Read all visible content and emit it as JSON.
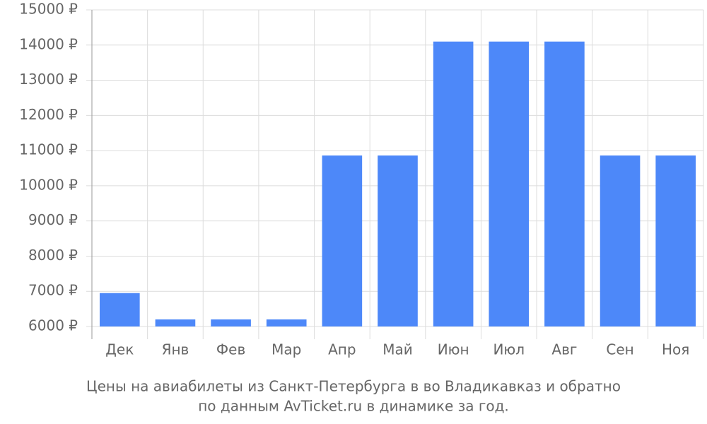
{
  "chart_data": {
    "type": "bar",
    "title": [
      "Цены на авиабилеты из Санкт-Петербурга в во Владикавказ и обратно",
      "по данным AvTicket.ru в динамике за год."
    ],
    "categories": [
      "Дек",
      "Янв",
      "Фев",
      "Мар",
      "Апр",
      "Май",
      "Июн",
      "Июл",
      "Авг",
      "Сен",
      "Ноя"
    ],
    "values": [
      6950,
      6200,
      6200,
      6200,
      10860,
      10860,
      14100,
      14100,
      14100,
      10860,
      10860
    ],
    "color": "#4d88f9",
    "ylim": [
      6000,
      15000
    ],
    "yticks": [
      {
        "value": 6000,
        "label": "6000 ₽"
      },
      {
        "value": 7000,
        "label": "7000 ₽"
      },
      {
        "value": 8000,
        "label": "8000 ₽"
      },
      {
        "value": 9000,
        "label": "9000 ₽"
      },
      {
        "value": 10000,
        "label": "10000 ₽"
      },
      {
        "value": 11000,
        "label": "11000 ₽"
      },
      {
        "value": 12000,
        "label": "12000 ₽"
      },
      {
        "value": 13000,
        "label": "13000 ₽"
      },
      {
        "value": 14000,
        "label": "14000 ₽"
      },
      {
        "value": 15000,
        "label": "15000 ₽"
      }
    ],
    "grid": true
  }
}
